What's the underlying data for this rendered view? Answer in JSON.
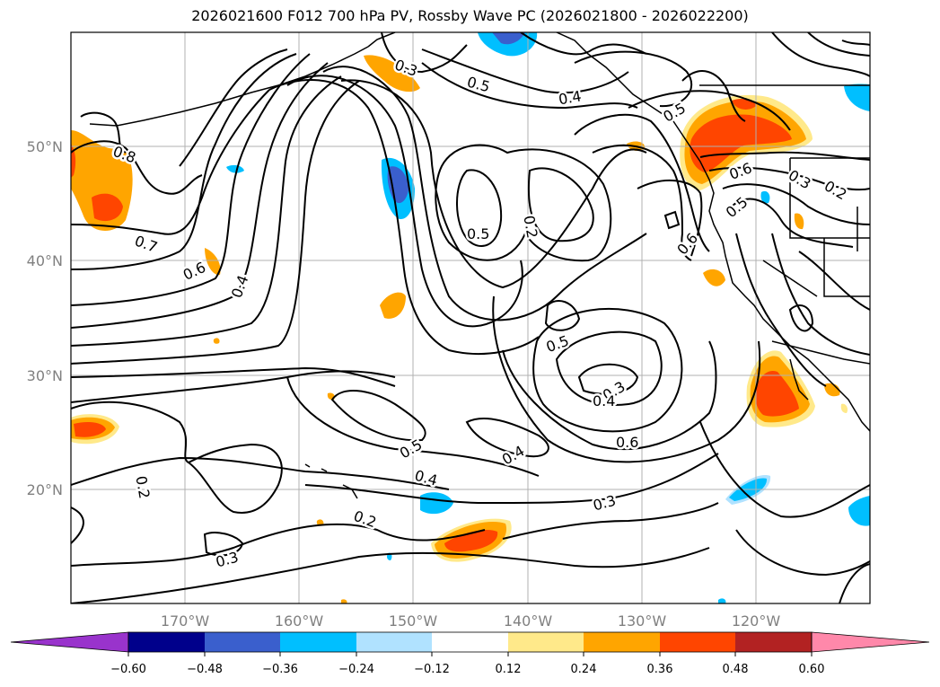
{
  "title": "2026021600 F012 700 hPa PV, Rossby Wave PC (2026021800 - 2026022200)",
  "lon_labels": [
    "170°W",
    "160°W",
    "150°W",
    "140°W",
    "130°W",
    "120°W"
  ],
  "lat_labels": [
    "50°N",
    "40°N",
    "30°N",
    "20°N"
  ],
  "contour_labels": [
    {
      "id": "c-0-8",
      "text": "0.8"
    },
    {
      "id": "c-0-7",
      "text": "0.7"
    },
    {
      "id": "c-0-6-west",
      "text": "0.6"
    },
    {
      "id": "c-0-4-west",
      "text": "0.4"
    },
    {
      "id": "c-0-3-north",
      "text": "0.3"
    },
    {
      "id": "c-0-5-north",
      "text": "0.5"
    },
    {
      "id": "c-0-4-north",
      "text": "0.4"
    },
    {
      "id": "c-0-5-center",
      "text": "0.5"
    },
    {
      "id": "c-0-2-center",
      "text": "0.2"
    },
    {
      "id": "c-0-5-east",
      "text": "0.5"
    },
    {
      "id": "c-0-5-mid",
      "text": "0.5"
    },
    {
      "id": "c-0-3-mid",
      "text": "0.3"
    },
    {
      "id": "c-0-4-mid",
      "text": "0.4"
    },
    {
      "id": "c-0-6-mid",
      "text": "0.6"
    },
    {
      "id": "c-0-6-coast",
      "text": "0.6"
    },
    {
      "id": "c-0-6-ne",
      "text": "0.6"
    },
    {
      "id": "c-0-5-ne",
      "text": "0.5"
    },
    {
      "id": "c-0-3-ne",
      "text": "0.3"
    },
    {
      "id": "c-0-2-ne",
      "text": "0.2"
    },
    {
      "id": "c-0-5-south",
      "text": "0.5"
    },
    {
      "id": "c-0-4-south",
      "text": "0.4"
    },
    {
      "id": "c-0-4-south2",
      "text": "0.4"
    },
    {
      "id": "c-0-3-south",
      "text": "0.3"
    },
    {
      "id": "c-0-2-sw",
      "text": "0.2"
    },
    {
      "id": "c-0-2-south",
      "text": "0.2"
    },
    {
      "id": "c-0-3-sw",
      "text": "0.3"
    }
  ],
  "colorbar": {
    "tick_labels": [
      "−0.60",
      "−0.48",
      "−0.36",
      "−0.24",
      "−0.12",
      "0.12",
      "0.24",
      "0.36",
      "0.48",
      "0.60"
    ],
    "colors": [
      "#9933cc",
      "#00008b",
      "#3a5fcd",
      "#00bfff",
      "#b0e2ff",
      "#ffffff",
      "#ffe98a",
      "#ffa500",
      "#ff4500",
      "#b22222",
      "#ff88aa"
    ]
  }
}
